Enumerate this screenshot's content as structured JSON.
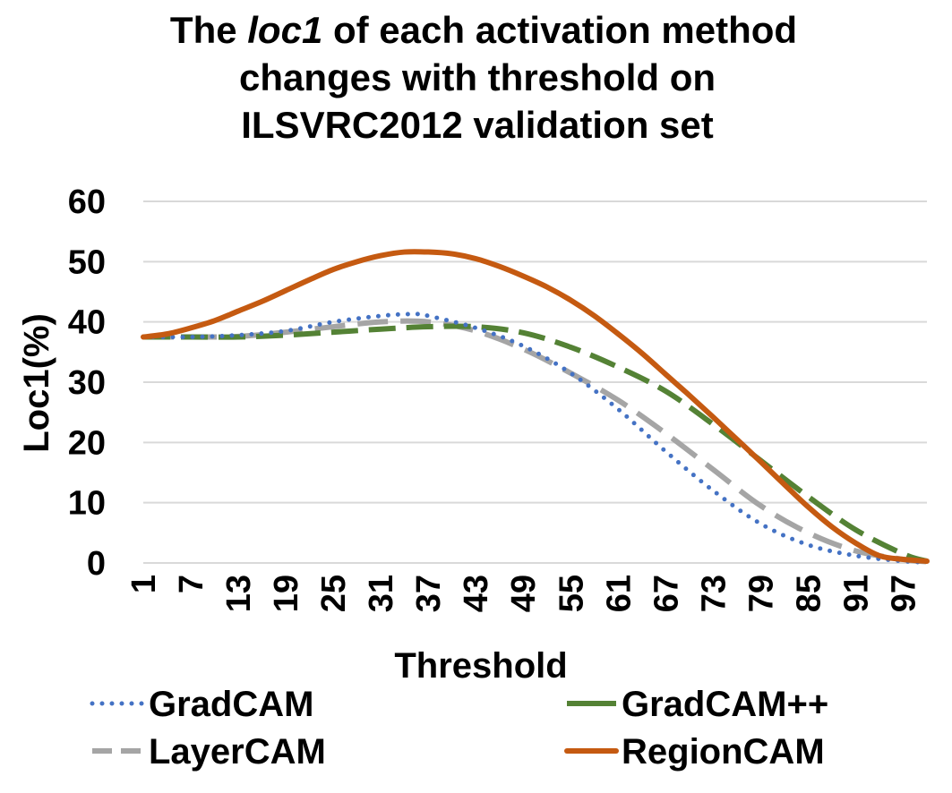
{
  "chart_data": {
    "type": "line",
    "title": {
      "line1_pre": "The ",
      "line1_italic": "loc1",
      "line1_post": " of each activation method",
      "line2": "changes with threshold on",
      "line3": "ILSVRC2012 validation set"
    },
    "xlabel": "Threshold",
    "ylabel": "Loc1(%)",
    "ylim": [
      0,
      60
    ],
    "yticks": [
      0,
      10,
      20,
      30,
      40,
      50,
      60
    ],
    "xlim": [
      1,
      100
    ],
    "xticks": [
      1,
      7,
      13,
      19,
      25,
      31,
      37,
      43,
      49,
      55,
      61,
      67,
      73,
      79,
      85,
      91,
      97
    ],
    "grid": true,
    "legend_position": "bottom",
    "series": [
      {
        "name": "GradCAM",
        "color": "#4472C4",
        "dash": "dotted",
        "x": [
          1,
          7,
          13,
          19,
          25,
          31,
          35,
          37,
          43,
          49,
          55,
          61,
          67,
          73,
          79,
          85,
          91,
          97,
          100
        ],
        "y": [
          37.5,
          37.5,
          37.8,
          38.5,
          40.0,
          41.0,
          41.3,
          41.0,
          39.0,
          36.0,
          31.5,
          25.5,
          18.5,
          12.0,
          6.5,
          3.0,
          1.2,
          0.3,
          0.1
        ]
      },
      {
        "name": "GradCAM++",
        "color": "#548235",
        "dash": "dashed",
        "x": [
          1,
          7,
          13,
          19,
          25,
          31,
          37,
          43,
          49,
          55,
          61,
          67,
          73,
          79,
          85,
          91,
          97,
          100
        ],
        "y": [
          37.5,
          37.5,
          37.5,
          37.8,
          38.3,
          38.8,
          39.2,
          39.2,
          38.2,
          35.8,
          32.5,
          28.5,
          23.0,
          17.0,
          11.0,
          5.5,
          1.5,
          0.3
        ]
      },
      {
        "name": "LayerCAM",
        "color": "#A5A5A5",
        "dash": "long-dash",
        "x": [
          1,
          7,
          13,
          19,
          25,
          31,
          37,
          43,
          49,
          55,
          61,
          67,
          73,
          79,
          85,
          91,
          97,
          100
        ],
        "y": [
          37.5,
          37.5,
          37.6,
          38.3,
          39.2,
          40.0,
          40.0,
          38.5,
          35.5,
          31.5,
          27.0,
          21.5,
          15.5,
          9.5,
          5.0,
          2.0,
          0.6,
          0.2
        ]
      },
      {
        "name": "RegionCAM",
        "color": "#C55A11",
        "dash": "solid",
        "x": [
          1,
          4,
          7,
          10,
          13,
          16,
          19,
          22,
          25,
          28,
          31,
          34,
          37,
          40,
          43,
          46,
          49,
          52,
          55,
          58,
          61,
          64,
          67,
          70,
          73,
          76,
          79,
          82,
          85,
          88,
          91,
          94,
          97,
          100
        ],
        "y": [
          37.5,
          38.0,
          39.0,
          40.2,
          41.8,
          43.4,
          45.2,
          47.0,
          48.7,
          50.0,
          51.0,
          51.6,
          51.6,
          51.3,
          50.5,
          49.2,
          47.6,
          45.8,
          43.6,
          41.0,
          38.0,
          34.8,
          31.3,
          27.8,
          24.2,
          20.5,
          16.8,
          13.0,
          9.3,
          6.0,
          3.3,
          1.2,
          0.6,
          0.3
        ]
      }
    ]
  }
}
